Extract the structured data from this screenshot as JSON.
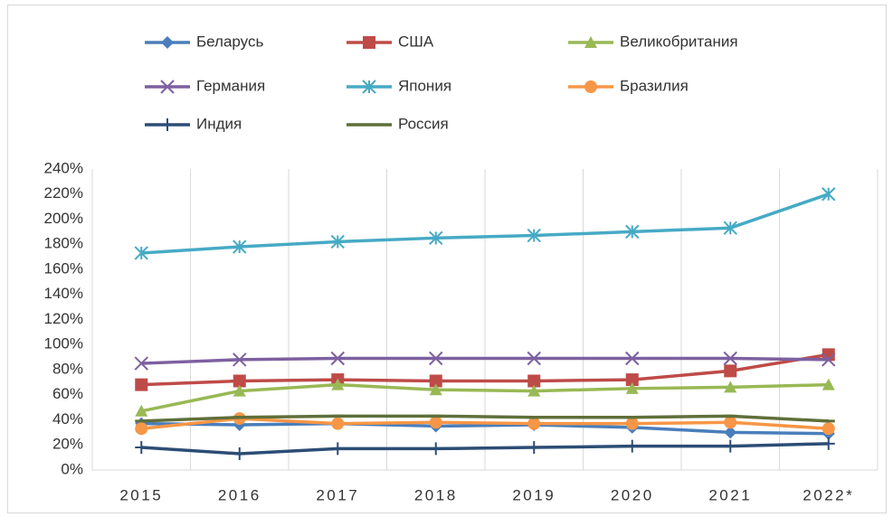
{
  "chart_data": {
    "type": "line",
    "categories": [
      "2015",
      "2016",
      "2017",
      "2018",
      "2019",
      "2020",
      "2021",
      "2022*"
    ],
    "series": [
      {
        "name": "Беларусь",
        "color": "#4a7ebb",
        "marker": "diamond",
        "values": [
          37,
          36,
          37,
          35,
          36,
          34,
          30,
          29
        ]
      },
      {
        "name": "США",
        "color": "#be4b48",
        "marker": "square",
        "values": [
          68,
          71,
          72,
          71,
          71,
          72,
          79,
          92
        ]
      },
      {
        "name": "Великобритания",
        "color": "#98b954",
        "marker": "triangle",
        "values": [
          47,
          63,
          68,
          64,
          63,
          65,
          66,
          68
        ]
      },
      {
        "name": "Германия",
        "color": "#7d60a0",
        "marker": "x",
        "values": [
          85,
          88,
          89,
          89,
          89,
          89,
          89,
          88
        ]
      },
      {
        "name": "Япония",
        "color": "#46aac5",
        "marker": "asterisk",
        "values": [
          173,
          178,
          182,
          185,
          187,
          190,
          193,
          220
        ]
      },
      {
        "name": "Бразилия",
        "color": "#f79646",
        "marker": "circle",
        "values": [
          33,
          41,
          37,
          38,
          37,
          37,
          38,
          33
        ]
      },
      {
        "name": "Индия",
        "color": "#2c4d75",
        "marker": "plus",
        "values": [
          18,
          13,
          17,
          17,
          18,
          19,
          19,
          21
        ]
      },
      {
        "name": "Россия",
        "color": "#5f6f3a",
        "marker": "dash",
        "values": [
          39,
          42,
          43,
          43,
          42,
          42,
          43,
          39
        ]
      }
    ],
    "ylim": [
      0,
      240
    ],
    "yticks": [
      {
        "value": 0,
        "label": "0%"
      },
      {
        "value": 20,
        "label": "20%"
      },
      {
        "value": 40,
        "label": "40%"
      },
      {
        "value": 60,
        "label": "60%"
      },
      {
        "value": 80,
        "label": "80%"
      },
      {
        "value": 100,
        "label": "100%"
      },
      {
        "value": 120,
        "label": "120%"
      },
      {
        "value": 140,
        "label": "140%"
      },
      {
        "value": 160,
        "label": "160%"
      },
      {
        "value": 180,
        "label": "180%"
      },
      {
        "value": 200,
        "label": "200%"
      },
      {
        "value": 220,
        "label": "220%"
      },
      {
        "value": 240,
        "label": "240%"
      }
    ],
    "grid": "x",
    "legend": "top"
  }
}
